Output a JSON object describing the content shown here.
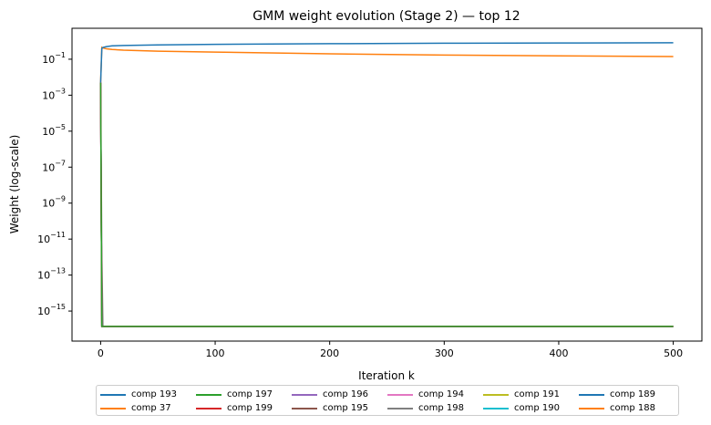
{
  "chart_data": {
    "type": "line",
    "title": "GMM weight evolution (Stage 2) — top 12",
    "xlabel": "Iteration k",
    "ylabel": "Weight (log-scale)",
    "yscale": "log",
    "xlim": [
      -25,
      525
    ],
    "ylim_log10": [
      -16.67,
      0.72
    ],
    "xticks": [
      0,
      100,
      200,
      300,
      400,
      500
    ],
    "yticks_exp": [
      -1,
      -3,
      -5,
      -7,
      -9,
      -11,
      -13,
      -15
    ],
    "grid": false,
    "legend_placement": "below",
    "x": [
      0,
      1,
      2,
      5,
      10,
      20,
      50,
      100,
      200,
      300,
      400,
      500
    ],
    "series": [
      {
        "name": "comp 193",
        "color": "#1f77b4",
        "values": [
          0.005,
          0.4,
          0.45,
          0.5,
          0.55,
          0.58,
          0.63,
          0.67,
          0.73,
          0.77,
          0.8,
          0.82
        ]
      },
      {
        "name": "comp 37",
        "color": "#ff7f0e",
        "values": [
          0.005,
          0.45,
          0.42,
          0.38,
          0.35,
          0.32,
          0.28,
          0.25,
          0.2,
          0.17,
          0.155,
          0.14
        ]
      },
      {
        "name": "comp 197",
        "color": "#2ca02c",
        "values": [
          0.005,
          1.4e-16,
          1.4e-16,
          1.4e-16,
          1.4e-16,
          1.4e-16,
          1.4e-16,
          1.4e-16,
          1.4e-16,
          1.4e-16,
          1.4e-16,
          1.4e-16
        ]
      },
      {
        "name": "comp 199",
        "color": "#d62728",
        "values": [
          0.005,
          1.4e-16,
          1.4e-16,
          1.4e-16,
          1.4e-16,
          1.4e-16,
          1.4e-16,
          1.4e-16,
          1.4e-16,
          1.4e-16,
          1.4e-16,
          1.4e-16
        ]
      },
      {
        "name": "comp 196",
        "color": "#9467bd",
        "values": [
          0.005,
          1.4e-16,
          1.4e-16,
          1.4e-16,
          1.4e-16,
          1.4e-16,
          1.4e-16,
          1.4e-16,
          1.4e-16,
          1.4e-16,
          1.4e-16,
          1.4e-16
        ]
      },
      {
        "name": "comp 195",
        "color": "#8c564b",
        "values": [
          0.005,
          1.4e-16,
          1.4e-16,
          1.4e-16,
          1.4e-16,
          1.4e-16,
          1.4e-16,
          1.4e-16,
          1.4e-16,
          1.4e-16,
          1.4e-16,
          1.4e-16
        ]
      },
      {
        "name": "comp 194",
        "color": "#e377c2",
        "values": [
          0.005,
          1.4e-16,
          1.4e-16,
          1.4e-16,
          1.4e-16,
          1.4e-16,
          1.4e-16,
          1.4e-16,
          1.4e-16,
          1.4e-16,
          1.4e-16,
          1.4e-16
        ]
      },
      {
        "name": "comp 198",
        "color": "#7f7f7f",
        "values": [
          0.005,
          1e-12,
          1.4e-16,
          1.4e-16,
          1.4e-16,
          1.4e-16,
          1.4e-16,
          1.4e-16,
          1.4e-16,
          1.4e-16,
          1.4e-16,
          1.4e-16
        ]
      },
      {
        "name": "comp 191",
        "color": "#bcbd22",
        "values": [
          0.005,
          1.4e-16,
          1.4e-16,
          1.4e-16,
          1.4e-16,
          1.4e-16,
          1.4e-16,
          1.4e-16,
          1.4e-16,
          1.4e-16,
          1.4e-16,
          1.4e-16
        ]
      },
      {
        "name": "comp 190",
        "color": "#17becf",
        "values": [
          0.005,
          1.4e-16,
          1.4e-16,
          1.4e-16,
          1.4e-16,
          1.4e-16,
          1.4e-16,
          1.4e-16,
          1.4e-16,
          1.4e-16,
          1.4e-16,
          1.4e-16
        ]
      },
      {
        "name": "comp 189",
        "color": "#1f77b4",
        "values": [
          0.005,
          1.4e-16,
          1.4e-16,
          1.4e-16,
          1.4e-16,
          1.4e-16,
          1.4e-16,
          1.4e-16,
          1.4e-16,
          1.4e-16,
          1.4e-16,
          1.4e-16
        ]
      },
      {
        "name": "comp 188",
        "color": "#ff7f0e",
        "values": [
          0.005,
          1.4e-16,
          1.4e-16,
          1.4e-16,
          1.4e-16,
          1.4e-16,
          1.4e-16,
          1.4e-16,
          1.4e-16,
          1.4e-16,
          1.4e-16,
          1.4e-16
        ]
      }
    ]
  }
}
